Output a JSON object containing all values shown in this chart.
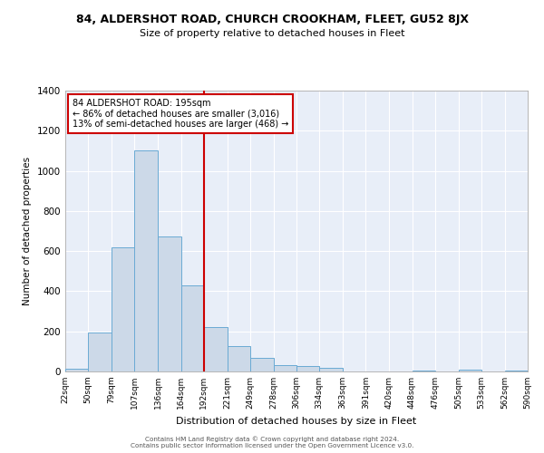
{
  "title": "84, ALDERSHOT ROAD, CHURCH CROOKHAM, FLEET, GU52 8JX",
  "subtitle": "Size of property relative to detached houses in Fleet",
  "xlabel": "Distribution of detached houses by size in Fleet",
  "ylabel": "Number of detached properties",
  "bar_color": "#ccd9e8",
  "bar_edge_color": "#6aaad4",
  "plot_bg_color": "#e8eef8",
  "fig_bg_color": "#ffffff",
  "grid_color": "#ffffff",
  "vline_x": 192,
  "vline_color": "#cc0000",
  "annotation_box_color": "#cc0000",
  "annotation_lines": [
    "84 ALDERSHOT ROAD: 195sqm",
    "← 86% of detached houses are smaller (3,016)",
    "13% of semi-detached houses are larger (468) →"
  ],
  "bin_edges": [
    22,
    50,
    79,
    107,
    136,
    164,
    192,
    221,
    249,
    278,
    306,
    334,
    363,
    391,
    420,
    448,
    476,
    505,
    533,
    562,
    590
  ],
  "bar_heights": [
    15,
    195,
    620,
    1100,
    675,
    430,
    220,
    125,
    70,
    30,
    25,
    20,
    0,
    0,
    0,
    5,
    0,
    10,
    0,
    5
  ],
  "ylim": [
    0,
    1400
  ],
  "yticks": [
    0,
    200,
    400,
    600,
    800,
    1000,
    1200,
    1400
  ],
  "footer_lines": [
    "Contains HM Land Registry data © Crown copyright and database right 2024.",
    "Contains public sector information licensed under the Open Government Licence v3.0."
  ]
}
